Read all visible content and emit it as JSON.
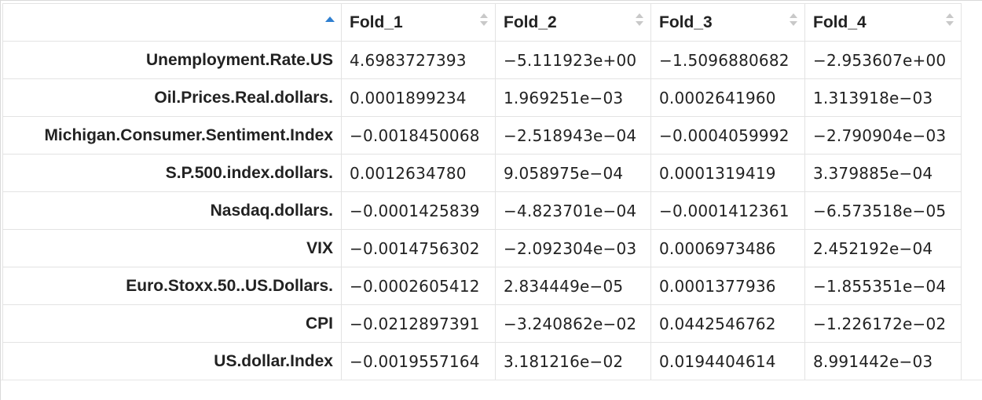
{
  "table": {
    "sort_column_index": 0,
    "sort_direction": "ascending",
    "columns": [
      {
        "label": "",
        "sort_icon": "sort-ascending-icon"
      },
      {
        "label": "Fold_1",
        "sort_icon": "sort-both-icon"
      },
      {
        "label": "Fold_2",
        "sort_icon": "sort-both-icon"
      },
      {
        "label": "Fold_3",
        "sort_icon": "sort-both-icon"
      },
      {
        "label": "Fold_4",
        "sort_icon": "sort-both-icon"
      }
    ],
    "rows": [
      {
        "name": "Unemployment.Rate.US",
        "values": [
          "4.6983727393",
          "−5.111923e+00",
          "−1.5096880682",
          "−2.953607e+00"
        ]
      },
      {
        "name": "Oil.Prices.Real.dollars.",
        "values": [
          "0.0001899234",
          "1.969251e−03",
          "0.0002641960",
          "1.313918e−03"
        ]
      },
      {
        "name": "Michigan.Consumer.Sentiment.Index",
        "values": [
          "−0.0018450068",
          "−2.518943e−04",
          "−0.0004059992",
          "−2.790904e−03"
        ]
      },
      {
        "name": "S.P.500.index.dollars.",
        "values": [
          "0.0012634780",
          "9.058975e−04",
          "0.0001319419",
          "3.379885e−04"
        ]
      },
      {
        "name": "Nasdaq.dollars.",
        "values": [
          "−0.0001425839",
          "−4.823701e−04",
          "−0.0001412361",
          "−6.573518e−05"
        ]
      },
      {
        "name": "VIX",
        "values": [
          "−0.0014756302",
          "−2.092304e−03",
          "0.0006973486",
          "2.452192e−04"
        ]
      },
      {
        "name": "Euro.Stoxx.50..US.Dollars.",
        "values": [
          "−0.0002605412",
          "2.834449e−05",
          "0.0001377936",
          "−1.855351e−04"
        ]
      },
      {
        "name": "CPI",
        "values": [
          "−0.0212897391",
          "−3.240862e−02",
          "0.0442546762",
          "−1.226172e−02"
        ]
      },
      {
        "name": "US.dollar.Index",
        "values": [
          "−0.0019557164",
          "3.181216e−02",
          "0.0194404614",
          "8.991442e−03"
        ]
      }
    ]
  },
  "colors": {
    "sort_active": "#2f7fd0",
    "sort_inactive": "#c8c8c8",
    "border": "#e3e3e3",
    "text": "#222222"
  }
}
